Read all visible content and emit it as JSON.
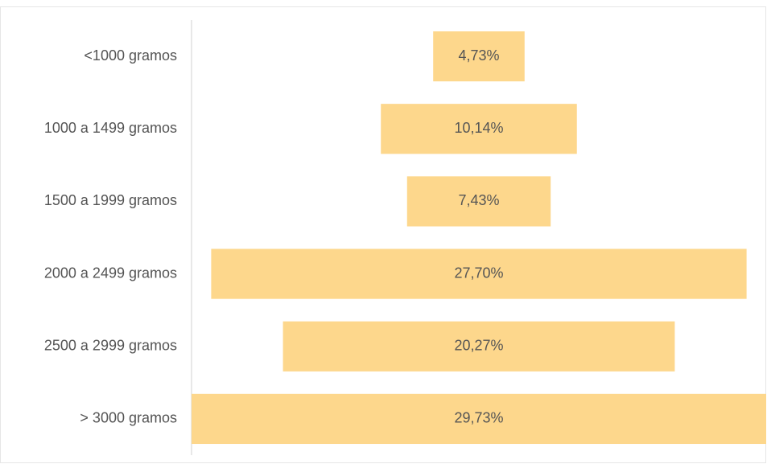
{
  "chart_data": {
    "type": "funnel",
    "categories": [
      "<1000 gramos",
      "1000 a 1499 gramos",
      "1500 a 1999 gramos",
      "2000 a 2499 gramos",
      "2500 a 2999 gramos",
      "> 3000 gramos"
    ],
    "values": [
      4.73,
      10.14,
      7.43,
      27.7,
      20.27,
      29.73
    ],
    "value_labels": [
      "4,73%",
      "10,14%",
      "7,43%",
      "27,70%",
      "20,27%",
      "29,73%"
    ],
    "color": "#fdd78c"
  }
}
